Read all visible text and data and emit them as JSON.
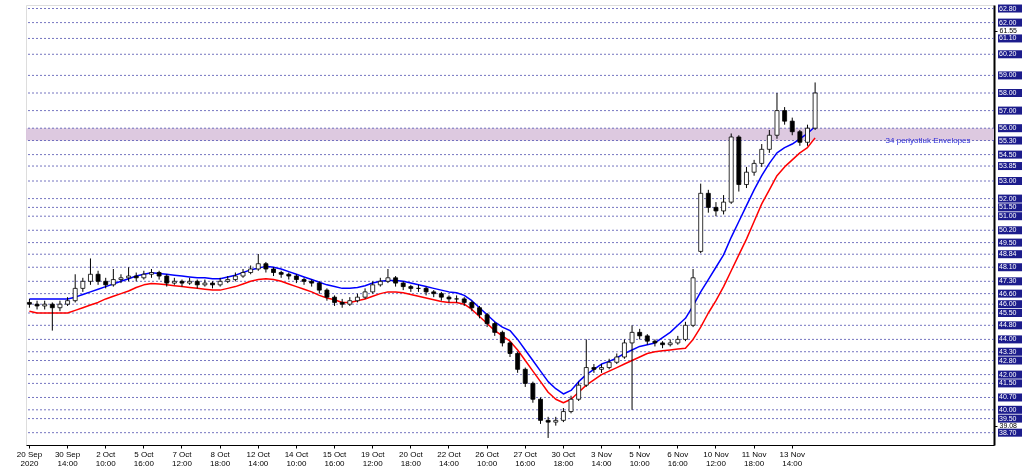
{
  "chart_data": {
    "type": "candlestick",
    "categories": [
      "20 Sep 2020",
      null,
      null,
      null,
      null,
      "30 Sep 14:00",
      null,
      null,
      null,
      null,
      "2 Oct 10:00",
      null,
      null,
      null,
      null,
      "5 Oct 16:00",
      null,
      null,
      null,
      null,
      "7 Oct 12:00",
      null,
      null,
      null,
      null,
      "8 Oct 18:00",
      null,
      null,
      null,
      null,
      "12 Oct 14:00",
      null,
      null,
      null,
      null,
      "14 Oct 10:00",
      null,
      null,
      null,
      null,
      "15 Oct 16:00",
      null,
      null,
      null,
      null,
      "19 Oct 12:00",
      null,
      null,
      null,
      null,
      "20 Oct 18:00",
      null,
      null,
      null,
      null,
      "22 Oct 14:00",
      null,
      null,
      null,
      null,
      "26 Oct 10:00",
      null,
      null,
      null,
      null,
      "27 Oct 16:00",
      null,
      null,
      null,
      null,
      "30 Oct 18:00",
      null,
      null,
      null,
      null,
      "3 Nov 14:00",
      null,
      null,
      null,
      null,
      "5 Nov 10:00",
      null,
      null,
      null,
      null,
      "6 Nov 16:00",
      null,
      null,
      null,
      null,
      "10 Nov 12:00",
      null,
      null,
      null,
      null,
      "11 Nov 18:00",
      null,
      null,
      null,
      null,
      "13 Nov 14:00",
      null,
      null,
      null,
      null,
      null,
      null,
      null,
      null,
      null,
      null,
      null,
      null,
      null,
      null,
      null,
      null,
      null,
      null,
      null,
      null,
      null,
      null,
      null,
      null,
      null,
      null
    ],
    "ohlc": [
      [
        46.1,
        46.3,
        45.8,
        46.0
      ],
      [
        46.0,
        46.2,
        45.7,
        45.9
      ],
      [
        45.9,
        46.2,
        45.7,
        46.0
      ],
      [
        46.0,
        46.1,
        44.5,
        45.8
      ],
      [
        45.8,
        46.2,
        45.6,
        46.0
      ],
      [
        46.0,
        46.4,
        45.9,
        46.2
      ],
      [
        46.2,
        47.7,
        46.1,
        46.9
      ],
      [
        46.9,
        47.5,
        46.7,
        47.3
      ],
      [
        47.3,
        48.6,
        47.1,
        47.7
      ],
      [
        47.7,
        47.9,
        47.1,
        47.3
      ],
      [
        47.3,
        47.5,
        46.9,
        47.1
      ],
      [
        47.1,
        48.0,
        47.0,
        47.4
      ],
      [
        47.4,
        47.7,
        47.2,
        47.5
      ],
      [
        47.5,
        48.1,
        47.3,
        47.6
      ],
      [
        47.6,
        47.8,
        47.3,
        47.5
      ],
      [
        47.5,
        47.9,
        47.4,
        47.7
      ],
      [
        47.7,
        48.0,
        47.5,
        47.8
      ],
      [
        47.8,
        47.9,
        47.4,
        47.6
      ],
      [
        47.6,
        47.7,
        47.0,
        47.2
      ],
      [
        47.2,
        47.5,
        47.1,
        47.3
      ],
      [
        47.3,
        47.4,
        47.0,
        47.2
      ],
      [
        47.2,
        47.5,
        47.1,
        47.3
      ],
      [
        47.3,
        47.4,
        46.9,
        47.1
      ],
      [
        47.1,
        47.4,
        47.0,
        47.2
      ],
      [
        47.2,
        47.3,
        46.9,
        47.1
      ],
      [
        47.1,
        47.5,
        47.0,
        47.3
      ],
      [
        47.3,
        47.6,
        47.2,
        47.4
      ],
      [
        47.4,
        47.8,
        47.3,
        47.6
      ],
      [
        47.6,
        48.0,
        47.5,
        47.8
      ],
      [
        47.8,
        48.2,
        47.7,
        48.0
      ],
      [
        48.0,
        48.85,
        47.9,
        48.3
      ],
      [
        48.3,
        48.4,
        47.8,
        48.0
      ],
      [
        48.0,
        48.1,
        47.6,
        47.8
      ],
      [
        47.8,
        47.9,
        47.5,
        47.7
      ],
      [
        47.7,
        47.8,
        47.4,
        47.6
      ],
      [
        47.6,
        47.7,
        47.2,
        47.4
      ],
      [
        47.4,
        47.5,
        47.1,
        47.3
      ],
      [
        47.3,
        47.4,
        47.0,
        47.2
      ],
      [
        47.2,
        47.3,
        46.6,
        46.8
      ],
      [
        46.8,
        46.9,
        46.2,
        46.4
      ],
      [
        46.4,
        46.5,
        45.9,
        46.1
      ],
      [
        46.1,
        46.3,
        45.8,
        46.0
      ],
      [
        46.0,
        46.4,
        45.9,
        46.2
      ],
      [
        46.2,
        46.6,
        46.1,
        46.4
      ],
      [
        46.4,
        46.9,
        46.3,
        46.7
      ],
      [
        46.7,
        47.3,
        46.6,
        47.1
      ],
      [
        47.1,
        47.5,
        47.0,
        47.3
      ],
      [
        47.3,
        48.0,
        47.2,
        47.5
      ],
      [
        47.5,
        47.6,
        47.0,
        47.2
      ],
      [
        47.2,
        47.3,
        46.8,
        47.0
      ],
      [
        47.0,
        47.1,
        46.7,
        46.9
      ],
      [
        46.9,
        47.1,
        46.7,
        46.9
      ],
      [
        46.9,
        47.0,
        46.5,
        46.7
      ],
      [
        46.7,
        46.8,
        46.4,
        46.6
      ],
      [
        46.6,
        46.7,
        46.2,
        46.4
      ],
      [
        46.4,
        46.5,
        46.1,
        46.3
      ],
      [
        46.3,
        46.5,
        46.1,
        46.3
      ],
      [
        46.3,
        46.4,
        45.9,
        46.1
      ],
      [
        46.1,
        46.2,
        45.6,
        45.8
      ],
      [
        45.8,
        45.9,
        45.2,
        45.4
      ],
      [
        45.4,
        45.5,
        44.7,
        44.9
      ],
      [
        44.9,
        45.0,
        44.2,
        44.4
      ],
      [
        44.4,
        44.5,
        43.6,
        43.8
      ],
      [
        43.8,
        43.9,
        43.0,
        43.2
      ],
      [
        43.2,
        43.3,
        42.1,
        42.3
      ],
      [
        42.3,
        42.4,
        41.3,
        41.5
      ],
      [
        41.5,
        41.6,
        40.4,
        40.6
      ],
      [
        40.6,
        40.7,
        39.2,
        39.4
      ],
      [
        39.4,
        39.6,
        38.4,
        39.3
      ],
      [
        39.3,
        39.6,
        39.1,
        39.4
      ],
      [
        39.4,
        40.1,
        39.3,
        39.9
      ],
      [
        39.9,
        40.8,
        39.8,
        40.6
      ],
      [
        40.6,
        41.6,
        40.5,
        41.4
      ],
      [
        41.4,
        44.0,
        41.3,
        42.4
      ],
      [
        42.4,
        42.6,
        42.1,
        42.3
      ],
      [
        42.3,
        42.6,
        42.1,
        42.4
      ],
      [
        42.4,
        42.9,
        42.3,
        42.7
      ],
      [
        42.7,
        43.2,
        42.6,
        43.0
      ],
      [
        43.0,
        44.0,
        42.9,
        43.8
      ],
      [
        43.8,
        44.8,
        40.0,
        44.4
      ],
      [
        44.4,
        44.6,
        44.0,
        44.2
      ],
      [
        44.2,
        44.3,
        43.7,
        43.9
      ],
      [
        43.9,
        44.0,
        43.6,
        43.8
      ],
      [
        43.8,
        43.9,
        43.5,
        43.7
      ],
      [
        43.7,
        44.0,
        43.6,
        43.8
      ],
      [
        43.8,
        44.2,
        43.7,
        44.0
      ],
      [
        44.0,
        45.0,
        43.9,
        44.8
      ],
      [
        44.8,
        48.0,
        44.7,
        47.5
      ],
      [
        49.0,
        52.85,
        48.9,
        52.3
      ],
      [
        52.3,
        52.5,
        51.2,
        51.5
      ],
      [
        51.5,
        51.8,
        51.0,
        51.3
      ],
      [
        51.3,
        52.2,
        51.1,
        51.8
      ],
      [
        51.8,
        55.7,
        51.7,
        55.5
      ],
      [
        55.5,
        55.6,
        52.4,
        52.8
      ],
      [
        52.8,
        53.8,
        52.6,
        53.5
      ],
      [
        53.5,
        54.2,
        53.3,
        54.0
      ],
      [
        54.0,
        55.1,
        53.8,
        54.8
      ],
      [
        54.8,
        55.9,
        54.6,
        55.6
      ],
      [
        55.6,
        58.0,
        55.4,
        57.0
      ],
      [
        57.0,
        57.2,
        56.2,
        56.4
      ],
      [
        56.4,
        56.6,
        55.6,
        55.8
      ],
      [
        55.8,
        55.9,
        55.0,
        55.2
      ],
      [
        55.2,
        56.2,
        55.0,
        56.0
      ],
      [
        56.0,
        58.6,
        55.9,
        58.0
      ],
      null,
      null,
      null,
      null,
      null,
      null,
      null,
      null,
      null,
      null,
      null,
      null,
      null,
      null,
      null,
      null,
      null,
      null,
      null,
      null,
      null,
      null,
      null
    ],
    "series": [
      {
        "type": "line",
        "color": "#0000ff",
        "values": [
          46.3,
          46.3,
          46.3,
          46.3,
          46.3,
          46.3,
          46.4,
          46.55,
          46.7,
          46.85,
          47.0,
          47.15,
          47.3,
          47.45,
          47.6,
          47.7,
          47.79,
          47.75,
          47.7,
          47.65,
          47.6,
          47.55,
          47.5,
          47.5,
          47.45,
          47.45,
          47.55,
          47.65,
          47.8,
          47.95,
          48.05,
          48.15,
          48.1,
          48.0,
          47.85,
          47.7,
          47.55,
          47.4,
          47.25,
          47.1,
          47.0,
          46.9,
          46.9,
          46.95,
          47.05,
          47.2,
          47.3,
          47.35,
          47.35,
          47.3,
          47.2,
          47.1,
          47.0,
          46.9,
          46.8,
          46.7,
          46.65,
          46.5,
          46.2,
          45.8,
          45.4,
          45.0,
          44.7,
          44.5,
          44.0,
          43.4,
          42.8,
          42.2,
          41.6,
          41.2,
          40.9,
          41.1,
          41.6,
          42.0,
          42.3,
          42.6,
          42.75,
          42.95,
          43.2,
          43.4,
          43.6,
          43.7,
          43.8,
          44.1,
          44.4,
          44.8,
          45.2,
          45.9,
          46.7,
          47.4,
          48.1,
          48.8,
          49.8,
          50.7,
          51.6,
          52.5,
          53.3,
          54.0,
          54.6,
          54.9,
          55.1,
          55.4,
          55.7,
          56.1,
          null,
          null,
          null,
          null,
          null,
          null,
          null,
          null,
          null,
          null,
          null,
          null,
          null,
          null,
          null,
          null,
          null,
          null,
          null,
          null,
          null,
          null,
          null
        ]
      },
      {
        "type": "line",
        "color": "#ff0000",
        "values": [
          45.6,
          45.5,
          45.5,
          45.5,
          45.5,
          45.5,
          45.65,
          45.8,
          45.95,
          46.1,
          46.3,
          46.45,
          46.6,
          46.75,
          46.95,
          47.1,
          47.18,
          47.15,
          47.1,
          47.05,
          47.0,
          46.95,
          46.9,
          46.85,
          46.8,
          46.8,
          46.9,
          47.0,
          47.15,
          47.3,
          47.4,
          47.45,
          47.4,
          47.3,
          47.15,
          47.0,
          46.85,
          46.7,
          46.5,
          46.35,
          46.25,
          46.1,
          46.1,
          46.2,
          46.3,
          46.45,
          46.6,
          46.7,
          46.7,
          46.65,
          46.55,
          46.45,
          46.35,
          46.25,
          46.15,
          46.1,
          46.1,
          46.0,
          45.7,
          45.3,
          44.9,
          44.5,
          44.2,
          43.9,
          43.4,
          42.8,
          42.2,
          41.6,
          41.0,
          40.6,
          40.4,
          40.6,
          41.0,
          41.4,
          41.7,
          42.0,
          42.2,
          42.4,
          42.6,
          42.8,
          43.0,
          43.2,
          43.3,
          43.35,
          43.4,
          43.45,
          43.5,
          44.0,
          44.7,
          45.5,
          46.2,
          47.0,
          47.9,
          48.8,
          49.7,
          50.7,
          51.7,
          52.5,
          53.3,
          53.8,
          54.2,
          54.6,
          54.9,
          55.45,
          null,
          null,
          null,
          null,
          null,
          null,
          null,
          null,
          null,
          null,
          null,
          null,
          null,
          null,
          null,
          null,
          null,
          null,
          null,
          null,
          null,
          null,
          null
        ]
      }
    ],
    "ylim": [
      38.0,
      63.0
    ],
    "yticks": [
      39.08,
      61.55
    ],
    "ref_lines": [
      {
        "axis": "y",
        "value": 62.8,
        "label": "62.80"
      },
      {
        "axis": "y",
        "value": 62.0,
        "label": "62.00"
      },
      {
        "axis": "y",
        "value": 61.1,
        "label": "61.10"
      },
      {
        "axis": "y",
        "value": 60.2,
        "label": "60.20"
      },
      {
        "axis": "y",
        "value": 59.0,
        "label": "59.00"
      },
      {
        "axis": "y",
        "value": 58.0,
        "label": "58.00"
      },
      {
        "axis": "y",
        "value": 57.0,
        "label": "57.00"
      },
      {
        "axis": "y",
        "value": 56.0,
        "label": "56.00"
      },
      {
        "axis": "y",
        "value": 55.3,
        "label": "55.30"
      },
      {
        "axis": "y",
        "value": 54.5,
        "label": "54.50"
      },
      {
        "axis": "y",
        "value": 53.85,
        "label": "53.85"
      },
      {
        "axis": "y",
        "value": 53.0,
        "label": "53.00"
      },
      {
        "axis": "y",
        "value": 52.0,
        "label": "52.00"
      },
      {
        "axis": "y",
        "value": 51.5,
        "label": "51.50"
      },
      {
        "axis": "y",
        "value": 51.0,
        "label": "51.00"
      },
      {
        "axis": "y",
        "value": 50.2,
        "label": "50.20"
      },
      {
        "axis": "y",
        "value": 49.5,
        "label": "49.50"
      },
      {
        "axis": "y",
        "value": 48.84,
        "label": "48.84"
      },
      {
        "axis": "y",
        "value": 48.1,
        "label": "48.10"
      },
      {
        "axis": "y",
        "value": 47.3,
        "label": "47.30"
      },
      {
        "axis": "y",
        "value": 46.6,
        "label": "46.60"
      },
      {
        "axis": "y",
        "value": 46.0,
        "label": "46.00"
      },
      {
        "axis": "y",
        "value": 45.5,
        "label": "45.50"
      },
      {
        "axis": "y",
        "value": 44.8,
        "label": "44.80"
      },
      {
        "axis": "y",
        "value": 44.0,
        "label": "44.00"
      },
      {
        "axis": "y",
        "value": 43.3,
        "label": "43.30"
      },
      {
        "axis": "y",
        "value": 42.8,
        "label": "42.80"
      },
      {
        "axis": "y",
        "value": 42.0,
        "label": "42.00"
      },
      {
        "axis": "y",
        "value": 41.5,
        "label": "41.50"
      },
      {
        "axis": "y",
        "value": 40.7,
        "label": "40.70"
      },
      {
        "axis": "y",
        "value": 40.0,
        "label": "40.00"
      },
      {
        "axis": "y",
        "value": 39.5,
        "label": "39.50"
      },
      {
        "axis": "y",
        "value": 38.7,
        "label": "38.70"
      }
    ],
    "bands": [
      {
        "axis": "y",
        "from": 55.3,
        "to": 56.0,
        "label": "34 periyotluk Envelopes",
        "color": "#d9c3dd"
      }
    ],
    "grid": false
  }
}
